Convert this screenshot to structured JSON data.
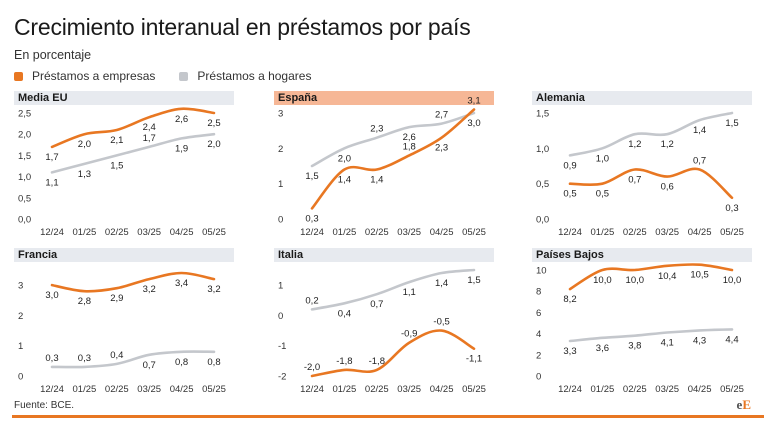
{
  "header": {
    "title": "Crecimiento interanual en préstamos por país",
    "subtitle": "En porcentaje"
  },
  "legend": {
    "items": [
      {
        "label": "Préstamos a empresas",
        "color": "#e87722"
      },
      {
        "label": "Préstamos a hogares",
        "color": "#c4c7cc"
      }
    ]
  },
  "footer": {
    "source": "Fuente: BCE.",
    "brand_e": "e",
    "brand_E": "E"
  },
  "colors": {
    "empresas": "#e87722",
    "hogares": "#c4c7cc",
    "header_highlight": "#f6b796",
    "header_default": "#e7eaef",
    "axis_text": "#333333",
    "label_text": "#222222"
  },
  "chart_data": [
    {
      "type": "line",
      "title": "Media EU",
      "categories": [
        "12/24",
        "01/25",
        "02/25",
        "03/25",
        "04/25",
        "05/25"
      ],
      "yticks": [
        "0,0",
        "0,5",
        "1,0",
        "1,5",
        "2,0",
        "2,5"
      ],
      "ylim": [
        0,
        2.5
      ],
      "series": [
        {
          "name": "Préstamos a empresas",
          "values": [
            1.7,
            2.0,
            2.1,
            2.4,
            2.6,
            2.5
          ],
          "labels": [
            "1,7",
            "2,0",
            "2,1",
            "2,4",
            "2,6",
            "2,5"
          ],
          "label_pos": [
            "below",
            "below",
            "below",
            "below",
            "below",
            "below"
          ]
        },
        {
          "name": "Préstamos a hogares",
          "values": [
            1.1,
            1.3,
            1.5,
            1.7,
            1.9,
            2.0
          ],
          "labels": [
            "1,1",
            "1,3",
            "1,5",
            "1,7",
            "1,9",
            "2,0"
          ],
          "label_pos": [
            "below",
            "below",
            "below",
            "above",
            "below",
            "below"
          ]
        }
      ]
    },
    {
      "type": "line",
      "title": "España",
      "categories": [
        "12/24",
        "01/25",
        "02/25",
        "03/25",
        "04/25",
        "05/25"
      ],
      "yticks": [
        "0",
        "1",
        "2",
        "3"
      ],
      "ylim": [
        0,
        3
      ],
      "series": [
        {
          "name": "Préstamos a empresas",
          "values": [
            0.3,
            1.4,
            1.4,
            1.8,
            2.3,
            3.1
          ],
          "labels": [
            "0,3",
            "1,4",
            "1,4",
            "1,8",
            "2,3",
            "3,1"
          ],
          "label_pos": [
            "below",
            "below",
            "below",
            "above",
            "below",
            "above"
          ]
        },
        {
          "name": "Préstamos a hogares",
          "values": [
            1.5,
            2.0,
            2.3,
            2.6,
            2.7,
            3.0
          ],
          "labels": [
            "1,5",
            "2,0",
            "2,3",
            "2,6",
            "2,7",
            "3,0"
          ],
          "label_pos": [
            "below",
            "below",
            "above",
            "below",
            "above",
            "below"
          ]
        }
      ]
    },
    {
      "type": "line",
      "title": "Alemania",
      "categories": [
        "12/24",
        "01/25",
        "02/25",
        "03/25",
        "04/25",
        "05/25"
      ],
      "yticks": [
        "0,0",
        "0,5",
        "1,0",
        "1,5"
      ],
      "ylim": [
        0,
        1.5
      ],
      "series": [
        {
          "name": "Préstamos a empresas",
          "values": [
            0.5,
            0.5,
            0.7,
            0.6,
            0.7,
            0.3
          ],
          "labels": [
            "0,5",
            "0,5",
            "0,7",
            "0,6",
            "0,7",
            "0,3"
          ],
          "label_pos": [
            "below",
            "below",
            "below",
            "below",
            "above",
            "below"
          ]
        },
        {
          "name": "Préstamos a hogares",
          "values": [
            0.9,
            1.0,
            1.2,
            1.2,
            1.4,
            1.5
          ],
          "labels": [
            "0,9",
            "1,0",
            "1,2",
            "1,2",
            "1,4",
            "1,5"
          ],
          "label_pos": [
            "below",
            "below",
            "below",
            "below",
            "below",
            "below"
          ]
        }
      ]
    },
    {
      "type": "line",
      "title": "Francia",
      "categories": [
        "12/24",
        "01/25",
        "02/25",
        "03/25",
        "04/25",
        "05/25"
      ],
      "yticks": [
        "0",
        "1",
        "2",
        "3"
      ],
      "ylim": [
        0,
        3.5
      ],
      "series": [
        {
          "name": "Préstamos a empresas",
          "values": [
            3.0,
            2.8,
            2.9,
            3.2,
            3.4,
            3.2
          ],
          "labels": [
            "3,0",
            "2,8",
            "2,9",
            "3,2",
            "3,4",
            "3,2"
          ],
          "label_pos": [
            "below",
            "below",
            "below",
            "below",
            "below",
            "below"
          ]
        },
        {
          "name": "Préstamos a hogares",
          "values": [
            0.3,
            0.3,
            0.4,
            0.7,
            0.8,
            0.8
          ],
          "labels": [
            "0,3",
            "0,3",
            "0,4",
            "0,7",
            "0,8",
            "0,8"
          ],
          "label_pos": [
            "above",
            "above",
            "above",
            "below",
            "below",
            "below"
          ]
        }
      ]
    },
    {
      "type": "line",
      "title": "Italia",
      "categories": [
        "12/24",
        "01/25",
        "02/25",
        "03/25",
        "04/25",
        "05/25"
      ],
      "yticks": [
        "-2",
        "-1",
        "0",
        "1"
      ],
      "ylim": [
        -2,
        1.5
      ],
      "series": [
        {
          "name": "Préstamos a empresas",
          "values": [
            -2.0,
            -1.8,
            -1.8,
            -0.9,
            -0.5,
            -1.1
          ],
          "labels": [
            "-2,0",
            "-1,8",
            "-1,8",
            "-0,9",
            "-0,5",
            "-1,1"
          ],
          "label_pos": [
            "above",
            "above",
            "above",
            "above",
            "above",
            "below"
          ]
        },
        {
          "name": "Préstamos a hogares",
          "values": [
            0.2,
            0.4,
            0.7,
            1.1,
            1.4,
            1.5
          ],
          "labels": [
            "0,2",
            "0,4",
            "0,7",
            "1,1",
            "1,4",
            "1,5"
          ],
          "label_pos": [
            "above",
            "below",
            "below",
            "below",
            "below",
            "below"
          ]
        }
      ]
    },
    {
      "type": "line",
      "title": "Países Bajos",
      "categories": [
        "12/24",
        "01/25",
        "02/25",
        "03/25",
        "04/25",
        "05/25"
      ],
      "yticks": [
        "0",
        "2",
        "4",
        "6",
        "8",
        "10"
      ],
      "ylim": [
        0,
        10
      ],
      "series": [
        {
          "name": "Préstamos a empresas",
          "values": [
            8.2,
            10.0,
            10.0,
            10.4,
            10.5,
            10.0
          ],
          "labels": [
            "8,2",
            "10,0",
            "10,0",
            "10,4",
            "10,5",
            "10,0"
          ],
          "label_pos": [
            "below",
            "below",
            "below",
            "below",
            "below",
            "below"
          ]
        },
        {
          "name": "Préstamos a hogares",
          "values": [
            3.3,
            3.6,
            3.8,
            4.1,
            4.3,
            4.4
          ],
          "labels": [
            "3,3",
            "3,6",
            "3,8",
            "4,1",
            "4,3",
            "4,4"
          ],
          "label_pos": [
            "below",
            "below",
            "below",
            "below",
            "below",
            "below"
          ]
        }
      ]
    }
  ]
}
